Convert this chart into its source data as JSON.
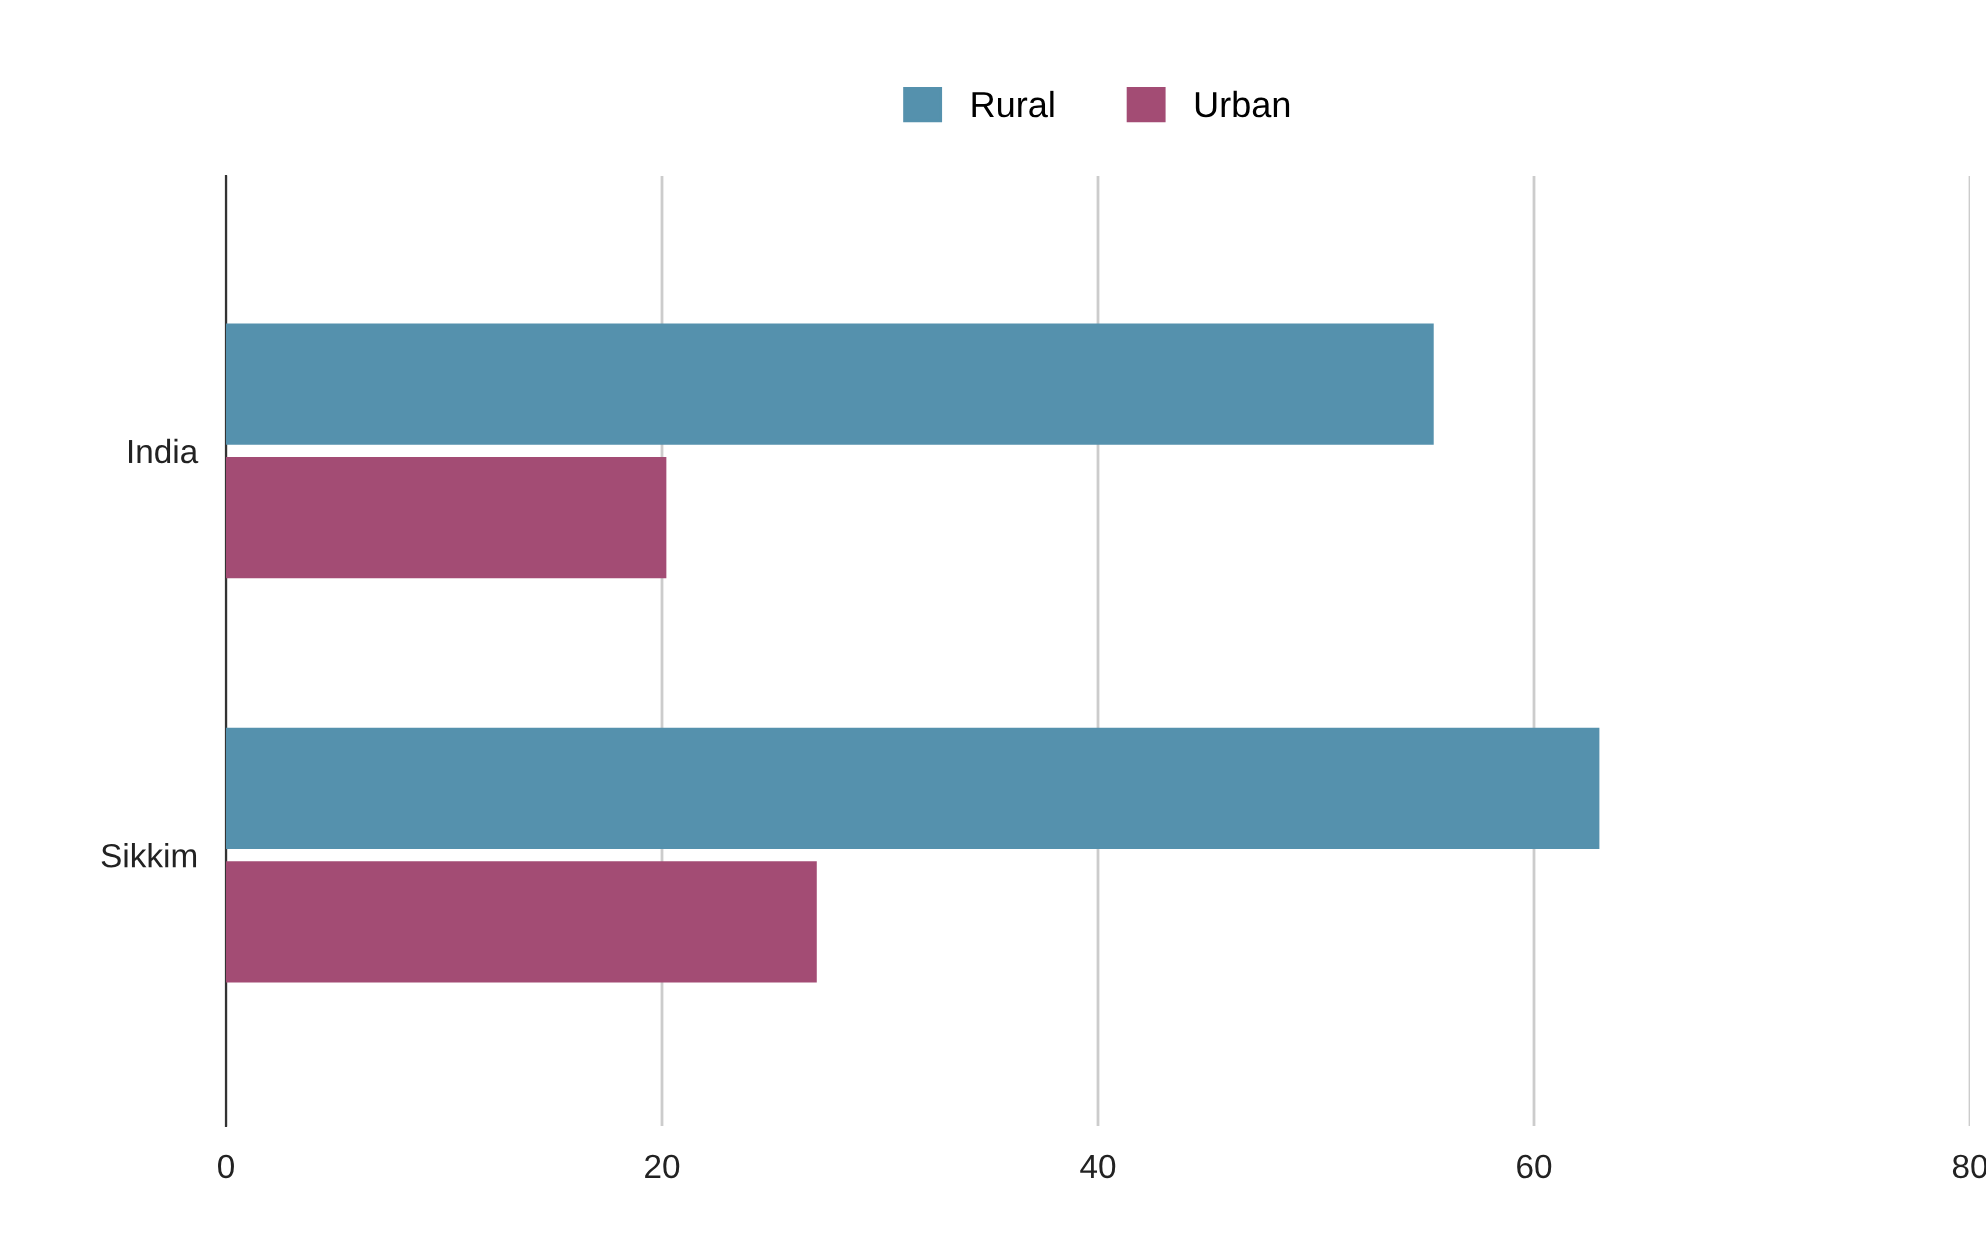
{
  "chart_data": {
    "type": "bar",
    "orientation": "horizontal",
    "categories": [
      "India",
      "Sikkim"
    ],
    "series": [
      {
        "name": "Rural",
        "color": "#5591ad",
        "values": [
          55.4,
          63.0
        ]
      },
      {
        "name": "Urban",
        "color": "#a34c74",
        "values": [
          20.2,
          27.1
        ]
      }
    ],
    "xlim": [
      0,
      80
    ],
    "xticks": [
      0,
      20,
      40,
      60,
      80
    ],
    "grid": "x",
    "legend": "top"
  }
}
